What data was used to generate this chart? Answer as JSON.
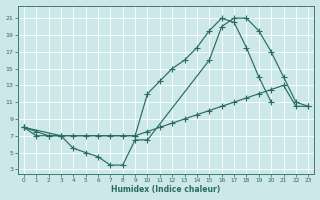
{
  "background_color": "#cce8e8",
  "grid_color": "#e0f0f0",
  "line_color": "#2a6b60",
  "xlabel": "Humidex (Indice chaleur)",
  "xlim": [
    -0.5,
    23.5
  ],
  "ylim": [
    2.5,
    22.5
  ],
  "yticks": [
    3,
    5,
    7,
    9,
    11,
    13,
    15,
    17,
    19,
    21
  ],
  "xticks": [
    0,
    1,
    2,
    3,
    4,
    5,
    6,
    7,
    8,
    9,
    10,
    11,
    12,
    13,
    14,
    15,
    16,
    17,
    18,
    19,
    20,
    21,
    22,
    23
  ],
  "line1_x": [
    0,
    1,
    2,
    3,
    9,
    10,
    11,
    12,
    13,
    14,
    15,
    16,
    17,
    18,
    19,
    20
  ],
  "line1_y": [
    8,
    7,
    7,
    7,
    7,
    12,
    13.5,
    15,
    16,
    17.5,
    19.5,
    21,
    20.5,
    17.5,
    14,
    11
  ],
  "line2_x": [
    0,
    1,
    2,
    3,
    4,
    5,
    6,
    7,
    8,
    9,
    10,
    11,
    12,
    13,
    14,
    15,
    16,
    17,
    18,
    19,
    20,
    21,
    22,
    23
  ],
  "line2_y": [
    8,
    7.5,
    7,
    7,
    7,
    7,
    7,
    7,
    7,
    7,
    7.5,
    8,
    8.5,
    9,
    9.5,
    10,
    10.5,
    11,
    11.5,
    12,
    12.5,
    13,
    10.5,
    10.5
  ],
  "line3_x": [
    0,
    3,
    4,
    5,
    6,
    7,
    8,
    9,
    10,
    15,
    16,
    17,
    18,
    19,
    20,
    21,
    22,
    23
  ],
  "line3_y": [
    8,
    7,
    5.5,
    5,
    4.5,
    3.5,
    3.5,
    6.5,
    6.5,
    16,
    20,
    21,
    21,
    19.5,
    17,
    14,
    11,
    10.5
  ]
}
